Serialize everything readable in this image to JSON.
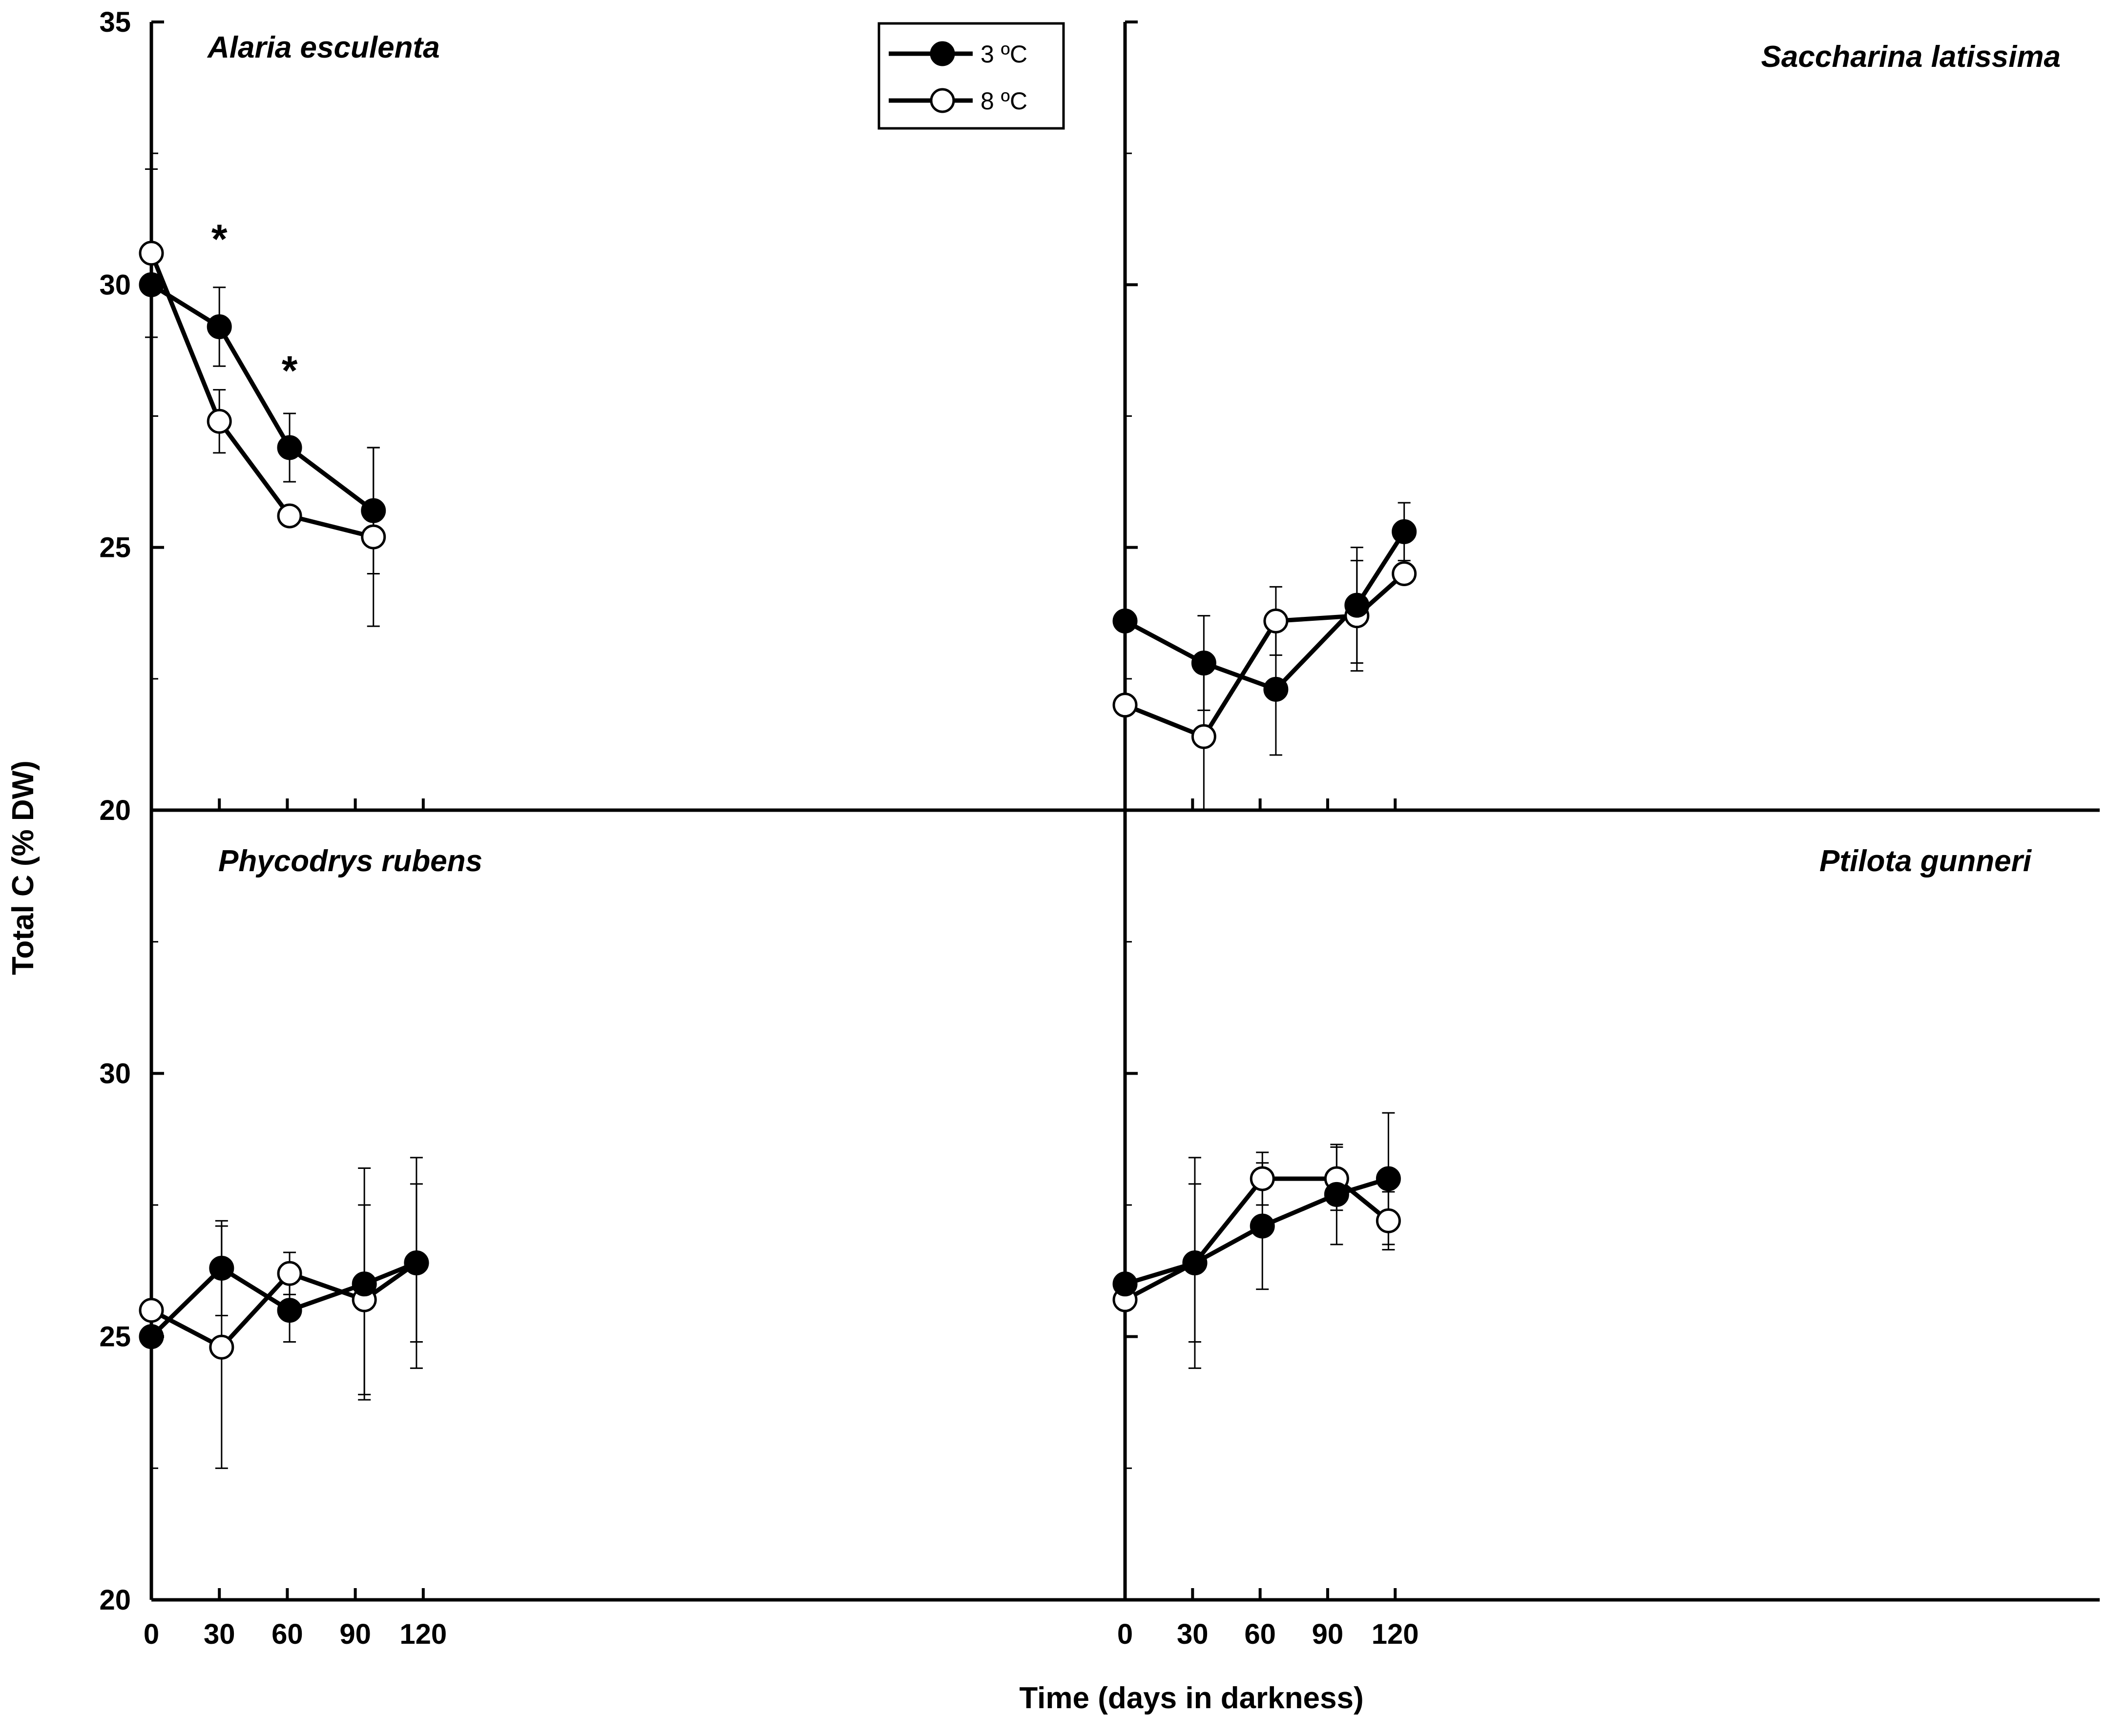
{
  "chart_data": {
    "type": "line",
    "ylabel": "Total C (% DW)",
    "xlabel": "Time (days in darkness)",
    "x_ticks": [
      0,
      30,
      60,
      90,
      120
    ],
    "legend": [
      {
        "name": "3 ºC",
        "marker": "filled-circle",
        "color": "#000000"
      },
      {
        "name": "8 ºC",
        "marker": "open-circle",
        "color": "#ffffff"
      }
    ],
    "panels": [
      {
        "title": "Alaria esculenta",
        "y_ticks": [
          20,
          25,
          30,
          35
        ],
        "ylim": [
          20,
          35
        ],
        "xlim": [
          0,
          125
        ],
        "series": [
          {
            "name": "3 ºC",
            "x": [
              0,
              30,
              61,
              98
            ],
            "y": [
              30.0,
              29.2,
              26.9,
              25.7
            ],
            "err": [
              0,
              0.75,
              0.65,
              1.2
            ]
          },
          {
            "name": "8 ºC",
            "x": [
              0,
              30,
              61,
              98
            ],
            "y": [
              30.6,
              27.4,
              25.6,
              25.2
            ],
            "err": [
              1.6,
              0.6,
              0.15,
              1.7
            ]
          }
        ],
        "annotations": [
          {
            "x": 30,
            "y": 30.6,
            "text": "*"
          },
          {
            "x": 61,
            "y": 28.1,
            "text": "*"
          }
        ]
      },
      {
        "title": "Saccharina latissima",
        "y_ticks": [
          20,
          25,
          30,
          35
        ],
        "ylim": [
          20,
          35
        ],
        "xlim": [
          0,
          130
        ],
        "series": [
          {
            "name": "3 ºC",
            "x": [
              0,
              35,
              67,
              103,
              124
            ],
            "y": [
              23.6,
              22.8,
              22.3,
              23.9,
              25.3
            ],
            "err": [
              0,
              0.9,
              1.25,
              1.1,
              0.55
            ]
          },
          {
            "name": "8 ºC",
            "x": [
              0,
              35,
              67,
              103,
              124
            ],
            "y": [
              22.0,
              21.4,
              23.6,
              23.7,
              24.5
            ],
            "err": [
              0,
              1.4,
              0.65,
              1.05,
              0
            ]
          }
        ],
        "annotations": []
      },
      {
        "title": "Phycodrys rubens",
        "y_ticks": [
          20,
          25,
          30
        ],
        "ylim": [
          20,
          35
        ],
        "xlim": [
          0,
          125
        ],
        "series": [
          {
            "name": "3 ºC",
            "x": [
              0,
              31,
              61,
              94,
              117
            ],
            "y": [
              25.0,
              26.3,
              25.5,
              26.0,
              26.4
            ],
            "err": [
              0,
              0.9,
              0.6,
              2.2,
              1.5
            ]
          },
          {
            "name": "8 ºC",
            "x": [
              0,
              31,
              61,
              94,
              117
            ],
            "y": [
              25.5,
              24.8,
              26.2,
              25.7,
              26.4
            ],
            "err": [
              0,
              2.3,
              0.4,
              1.8,
              2.0
            ]
          }
        ],
        "annotations": []
      },
      {
        "title": "Ptilota gunneri",
        "y_ticks": [
          20,
          25,
          30
        ],
        "ylim": [
          20,
          35
        ],
        "xlim": [
          0,
          130
        ],
        "series": [
          {
            "name": "3 ºC",
            "x": [
              0,
              31,
              61,
              94,
              117
            ],
            "y": [
              26.0,
              26.4,
              27.1,
              27.7,
              28.0
            ],
            "err": [
              0,
              1.5,
              1.2,
              0.95,
              1.25
            ]
          },
          {
            "name": "8 ºC",
            "x": [
              0,
              31,
              61,
              94,
              117
            ],
            "y": [
              25.7,
              26.4,
              28.0,
              28.0,
              27.2
            ],
            "err": [
              0,
              2.0,
              0.5,
              0.6,
              0.55
            ]
          }
        ],
        "annotations": []
      }
    ]
  }
}
